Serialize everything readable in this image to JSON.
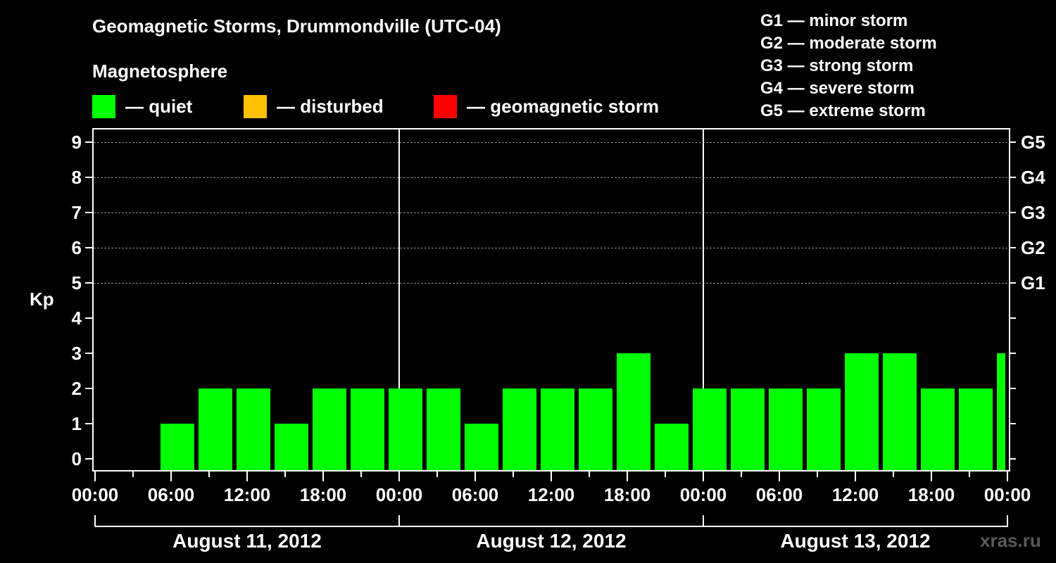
{
  "chart_data": {
    "type": "bar",
    "title": "Geomagnetic Storms, Drummondville (UTC-04)",
    "subtitle": "Magnetosphere",
    "ylabel": "Kp",
    "xlabel": "",
    "ylim": [
      0,
      9
    ],
    "yticks": [
      "0",
      "1",
      "2",
      "3",
      "4",
      "5",
      "6",
      "7",
      "8",
      "9"
    ],
    "right_ticks": [
      {
        "kp": 5,
        "label": "G1"
      },
      {
        "kp": 6,
        "label": "G2"
      },
      {
        "kp": 7,
        "label": "G3"
      },
      {
        "kp": 8,
        "label": "G4"
      },
      {
        "kp": 9,
        "label": "G5"
      }
    ],
    "xticks": [
      "00:00",
      "06:00",
      "12:00",
      "18:00",
      "00:00",
      "06:00",
      "12:00",
      "18:00",
      "00:00",
      "06:00",
      "12:00",
      "18:00",
      "00:00"
    ],
    "dates": [
      "August 11, 2012",
      "August 12, 2012",
      "August 13, 2012"
    ],
    "bin_hours": 3,
    "grid": "dashed horizontal at Kp 5-9",
    "legend": [
      {
        "label": "— quiet",
        "color": "#00ff00"
      },
      {
        "label": "— disturbed",
        "color": "#ffc000"
      },
      {
        "label": "— geomagnetic storm",
        "color": "#ff0000"
      }
    ],
    "storm_scale": [
      "G1 — minor storm",
      "G2 — moderate storm",
      "G3 — strong storm",
      "G4 — severe storm",
      "G5 — extreme storm"
    ],
    "series": [
      {
        "name": "Kp",
        "x": [
          "Aug 11 00:00",
          "Aug 11 03:00",
          "Aug 11 06:00",
          "Aug 11 09:00",
          "Aug 11 12:00",
          "Aug 11 15:00",
          "Aug 11 18:00",
          "Aug 11 21:00",
          "Aug 12 00:00",
          "Aug 12 03:00",
          "Aug 12 06:00",
          "Aug 12 09:00",
          "Aug 12 12:00",
          "Aug 12 15:00",
          "Aug 12 18:00",
          "Aug 12 21:00",
          "Aug 13 00:00",
          "Aug 13 03:00",
          "Aug 13 06:00",
          "Aug 13 09:00",
          "Aug 13 12:00",
          "Aug 13 15:00",
          "Aug 13 18:00",
          "Aug 13 21:00",
          "Aug 14 00:00"
        ],
        "values": [
          null,
          null,
          1,
          2,
          2,
          1,
          2,
          2,
          2,
          2,
          1,
          2,
          2,
          2,
          3,
          1,
          2,
          2,
          2,
          2,
          3,
          3,
          2,
          2,
          3
        ],
        "color": "#00ff00"
      }
    ]
  },
  "header": {
    "title": "Geomagnetic Storms, Drummondville (UTC-04)",
    "subtitle": "Magnetosphere",
    "legend": [
      "— quiet",
      "— disturbed",
      "— geomagnetic storm"
    ],
    "storm_scale": [
      "G1 — minor storm",
      "G2 — moderate storm",
      "G3 — strong storm",
      "G4 — severe storm",
      "G5 — extreme storm"
    ]
  },
  "axis": {
    "ylabel": "Kp"
  },
  "watermark": "xras.ru",
  "colors": {
    "quiet": "#00ff00",
    "disturbed": "#ffc000",
    "storm": "#ff0000",
    "grid": "#8a8a8a",
    "background": "#000000"
  }
}
